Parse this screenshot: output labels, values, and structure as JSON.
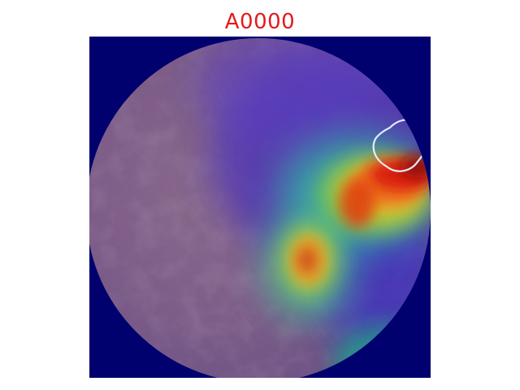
{
  "figure": {
    "title": "A0000",
    "title_color": "#e41a1c"
  },
  "overlay": {
    "colormap": "jet",
    "outline_color": "#e8f2ff",
    "background_color": "#00006e"
  }
}
